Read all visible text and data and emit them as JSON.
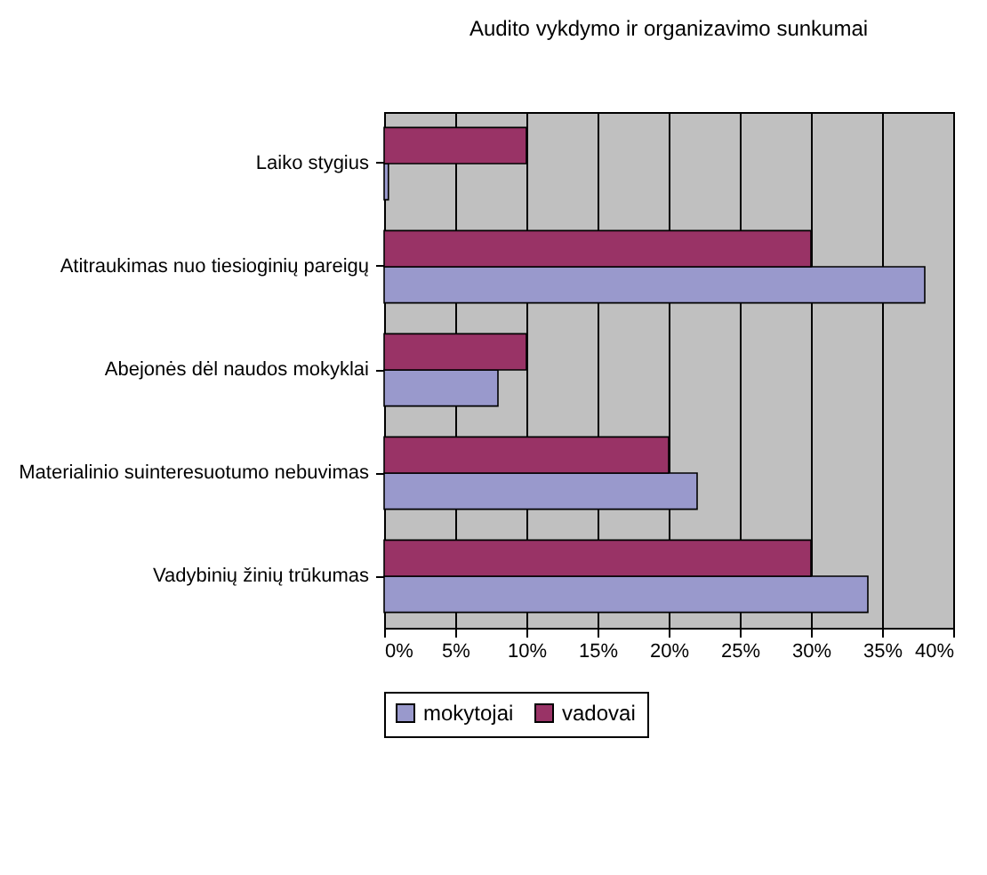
{
  "chart_data": {
    "type": "bar",
    "orientation": "horizontal",
    "title": "Audito vykdymo ir organizavimo sunkumai",
    "categories": [
      "Laiko stygius",
      "Atitraukimas nuo tiesioginių pareigų",
      "Abejonės dėl naudos mokyklai",
      "Materialinio suinteresuotumo nebuvimas",
      "Vadybinių žinių trūkumas"
    ],
    "series": [
      {
        "name": "mokytojai",
        "color": "#9999cc",
        "values": [
          0.3,
          38,
          8,
          22,
          34
        ]
      },
      {
        "name": "vadovai",
        "color": "#993366",
        "values": [
          10,
          30,
          10,
          20,
          30
        ]
      }
    ],
    "xlim": [
      0,
      40
    ],
    "xticks": [
      {
        "value": 0,
        "label": "0%"
      },
      {
        "value": 5,
        "label": "5%"
      },
      {
        "value": 10,
        "label": "10%"
      },
      {
        "value": 15,
        "label": "15%"
      },
      {
        "value": 20,
        "label": "20%"
      },
      {
        "value": 25,
        "label": "25%"
      },
      {
        "value": 30,
        "label": "30%"
      },
      {
        "value": 35,
        "label": "35%"
      },
      {
        "value": 40,
        "label": "40%"
      }
    ],
    "grid": "x",
    "legend": "bottom"
  }
}
